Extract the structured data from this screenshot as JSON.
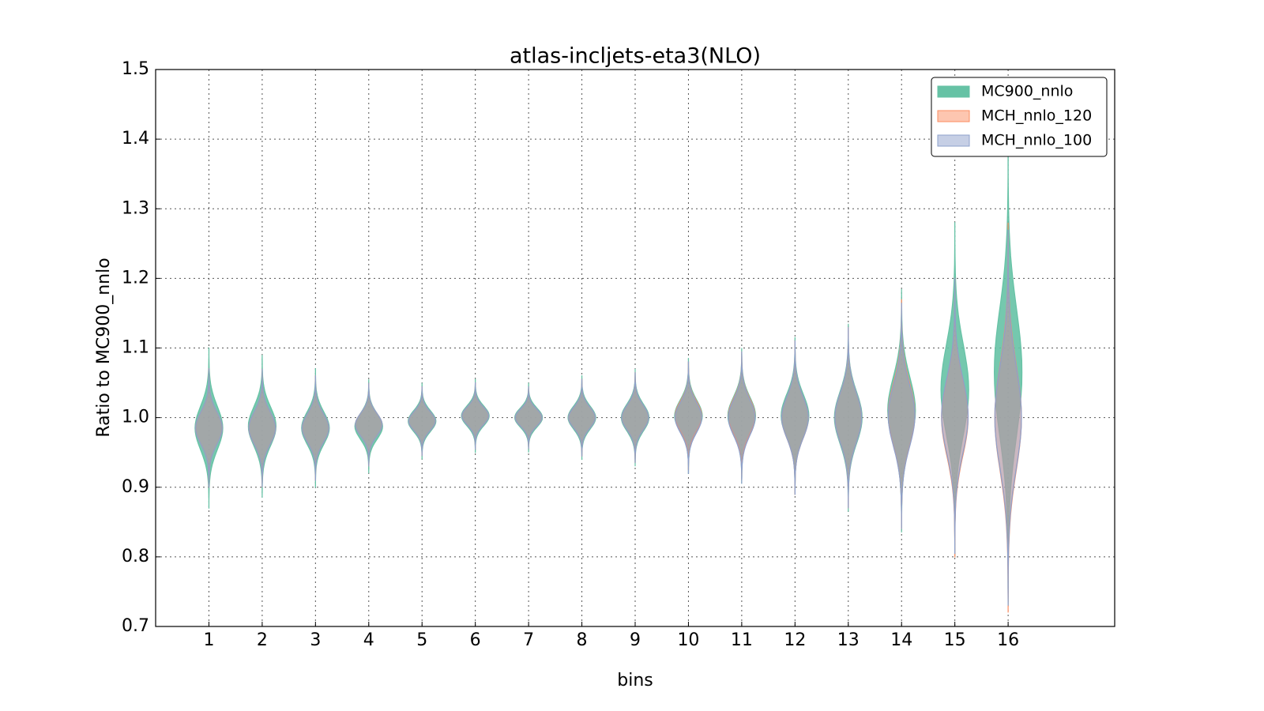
{
  "chart_data": {
    "type": "violin",
    "title": "atlas-incljets-eta3(NLO)",
    "x_label": "bins",
    "y_label": "Ratio to MC900_nnlo",
    "x": [
      1,
      2,
      3,
      4,
      5,
      6,
      7,
      8,
      9,
      10,
      11,
      12,
      13,
      14,
      15,
      16
    ],
    "xlim": [
      0,
      18
    ],
    "xticks": [
      1,
      2,
      3,
      4,
      5,
      6,
      7,
      8,
      9,
      10,
      11,
      12,
      13,
      14,
      15,
      16
    ],
    "ylim": [
      0.7,
      1.5
    ],
    "yticks": [
      0.7,
      0.8,
      0.9,
      {
        "value": 1,
        "label": "1.0"
      },
      1.1,
      1.2,
      1.3,
      1.4,
      1.5
    ],
    "grid": true,
    "legend": "upper right",
    "series": [
      {
        "name": "MC900_nnlo",
        "color": "#66c2a5",
        "half_width": 0.26,
        "min": [
          0.87,
          0.885,
          0.9,
          0.92,
          0.94,
          0.95,
          0.95,
          0.94,
          0.93,
          0.92,
          0.905,
          0.89,
          0.865,
          0.835,
          0.8,
          0.73
        ],
        "max": [
          1.1,
          1.09,
          1.07,
          1.055,
          1.05,
          1.055,
          1.05,
          1.06,
          1.07,
          1.085,
          1.1,
          1.115,
          1.135,
          1.185,
          1.28,
          1.4
        ]
      },
      {
        "name": "MCH_nnlo_120",
        "color": "#fc8d62",
        "half_width": 0.25,
        "min": [
          0.9,
          0.9,
          0.91,
          0.93,
          0.945,
          0.955,
          0.955,
          0.945,
          0.935,
          0.925,
          0.91,
          0.89,
          0.87,
          0.84,
          0.8,
          0.72
        ],
        "max": [
          1.07,
          1.07,
          1.06,
          1.05,
          1.045,
          1.05,
          1.045,
          1.055,
          1.065,
          1.08,
          1.095,
          1.11,
          1.13,
          1.17,
          1.2,
          1.28
        ]
      },
      {
        "name": "MCH_nnlo_100",
        "color": "#8da0cb",
        "half_width": 0.25,
        "min": [
          0.9,
          0.9,
          0.91,
          0.93,
          0.945,
          0.955,
          0.955,
          0.945,
          0.935,
          0.92,
          0.905,
          0.89,
          0.87,
          0.84,
          0.805,
          0.73
        ],
        "max": [
          1.07,
          1.07,
          1.06,
          1.05,
          1.045,
          1.05,
          1.045,
          1.055,
          1.065,
          1.08,
          1.095,
          1.11,
          1.13,
          1.165,
          1.2,
          1.27
        ]
      }
    ]
  }
}
